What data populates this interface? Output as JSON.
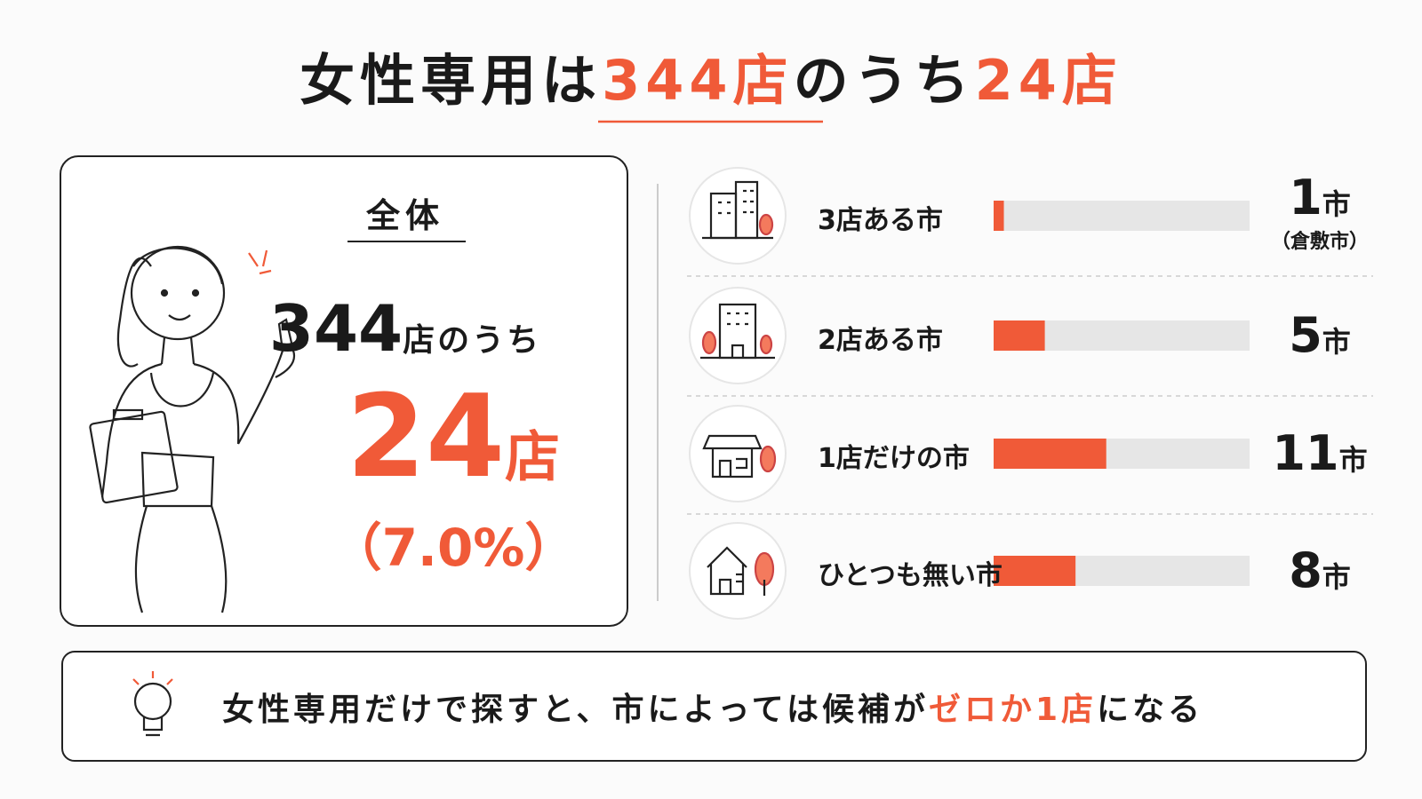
{
  "title": {
    "parts": [
      {
        "text": "女性専用は",
        "color": "#1a1a1a"
      },
      {
        "text": "344店",
        "color": "#f05a38"
      },
      {
        "text": "のうち",
        "color": "#1a1a1a"
      },
      {
        "text": "24店",
        "color": "#f05a38"
      }
    ]
  },
  "overall": {
    "label": "全体",
    "total": "344",
    "total_suffix": "店のうち",
    "count": "24",
    "count_suffix": "店",
    "share": "（7.0%）",
    "color": "#f05a38"
  },
  "cities": {
    "unit": "市",
    "bar_color": "#f05a38",
    "track_color": "#e6e6e6",
    "rows": [
      {
        "label": "3店ある市",
        "value": 1,
        "note": "（倉敷市）"
      },
      {
        "label": "2店ある市",
        "value": 5
      },
      {
        "label": "1店だけの市",
        "value": 11
      },
      {
        "label": "ひとつも無い市",
        "value": 8
      }
    ]
  },
  "note": {
    "parts": [
      {
        "text": "女性専用だけで探すと、市によっては候補が",
        "color": "#1a1a1a"
      },
      {
        "text": "ゼロか1店",
        "color": "#f05a38"
      },
      {
        "text": "になる",
        "color": "#1a1a1a"
      }
    ]
  }
}
